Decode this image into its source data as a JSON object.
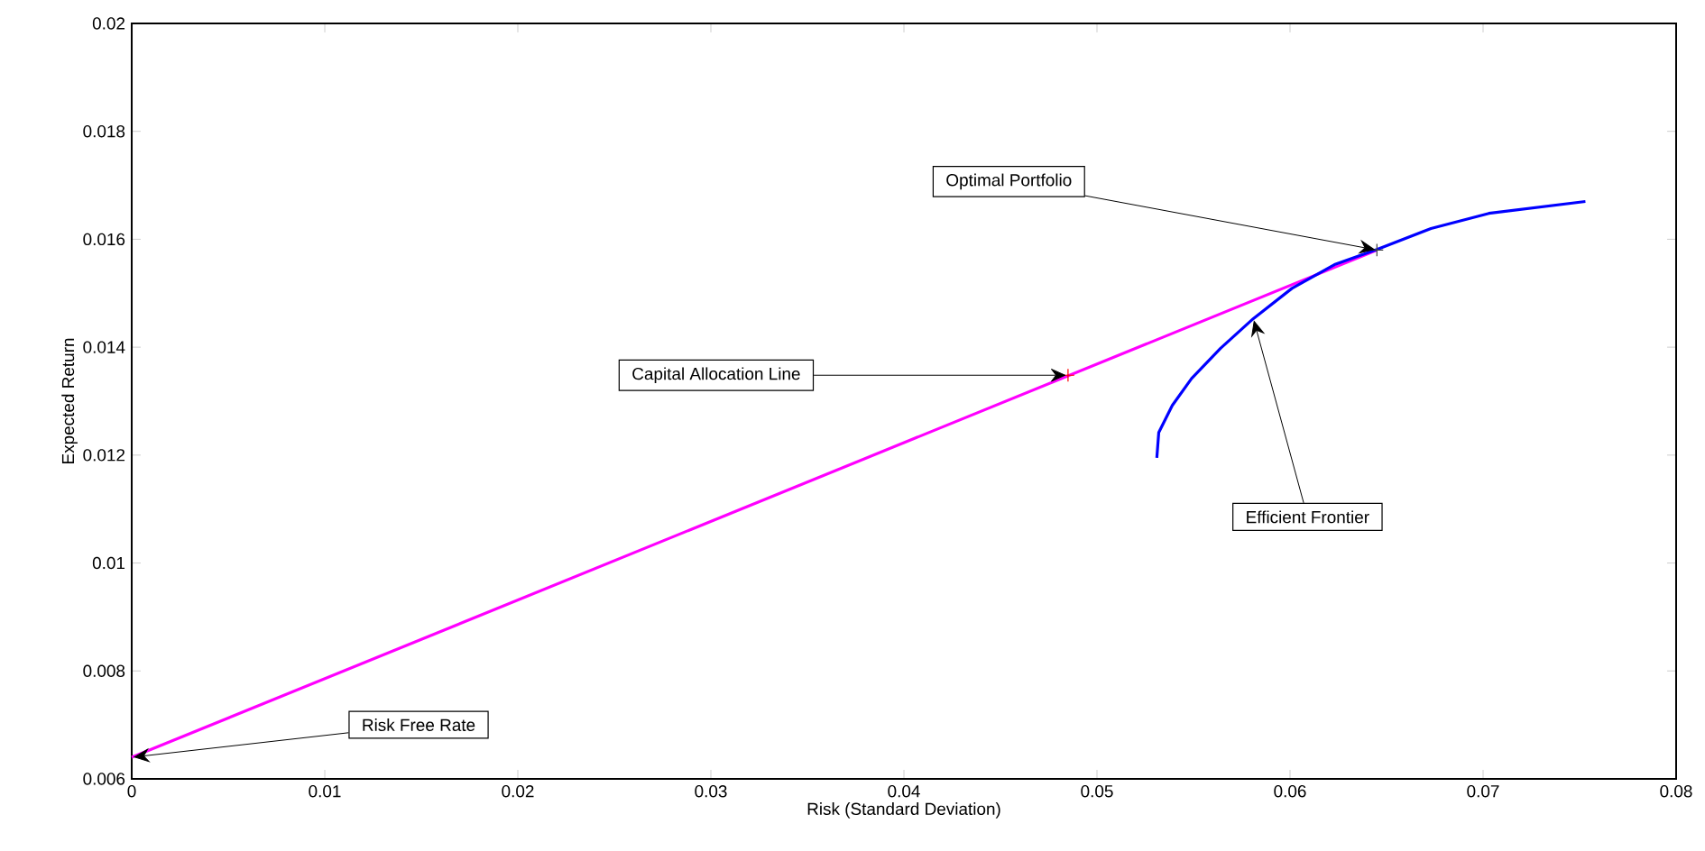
{
  "chart_data": {
    "type": "line",
    "xlabel": "Risk (Standard Deviation)",
    "ylabel": "Expected  Return",
    "xlim": [
      0,
      0.08
    ],
    "ylim": [
      0.006,
      0.02
    ],
    "xticks": [
      0,
      0.01,
      0.02,
      0.03,
      0.04,
      0.05,
      0.06,
      0.07,
      0.08
    ],
    "yticks": [
      0.006,
      0.008,
      0.01,
      0.012,
      0.014,
      0.016,
      0.018,
      0.02
    ],
    "series": [
      {
        "color": "#ff00ff",
        "x": [
          0,
          0.0645
        ],
        "values": [
          0.0064,
          0.0158
        ]
      },
      {
        "color": "#0000ff",
        "x": [
          0.0531,
          0.0532,
          0.0539,
          0.0549,
          0.0564,
          0.0581,
          0.0601,
          0.0623,
          0.0645,
          0.0673,
          0.0703,
          0.0753
        ],
        "values": [
          0.01195,
          0.01242,
          0.01292,
          0.01342,
          0.01398,
          0.01453,
          0.01509,
          0.01553,
          0.01581,
          0.0162,
          0.01648,
          0.0167
        ]
      },
      {
        "type": "scatter",
        "color": "#ff0000",
        "marker": "cross",
        "x": [
          0.0485
        ],
        "values": [
          0.01348
        ]
      },
      {
        "type": "scatter",
        "color": "#404040",
        "marker": "cross",
        "x": [
          0.0645
        ],
        "values": [
          0.0158
        ]
      }
    ],
    "annotations": [
      {
        "text": "Optimal Portfolio",
        "x": 0.0645,
        "y": 0.0158
      },
      {
        "text": "Capital Allocation Line",
        "x": 0.0485,
        "y": 0.01348
      },
      {
        "text": "Efficient Frontier",
        "x": 0.0581,
        "y": 0.01453
      },
      {
        "text": "Risk Free Rate",
        "x": 0,
        "y": 0.0064
      }
    ]
  }
}
